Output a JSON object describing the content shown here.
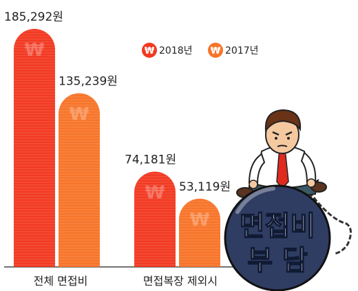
{
  "chart_data": {
    "type": "bar",
    "categories": [
      "전체 면접비",
      "면접복장 제외시"
    ],
    "series": [
      {
        "name": "2018년",
        "values": [
          185292,
          74181
        ],
        "labels": [
          "185,292원",
          "74,181원"
        ],
        "color": "#f23a22"
      },
      {
        "name": "2017년",
        "values": [
          135239,
          53119
        ],
        "labels": [
          "135,239원",
          "53,119원"
        ],
        "color": "#f7752a"
      }
    ],
    "ylim": [
      0,
      185292
    ],
    "legend": "top-right",
    "grid": false
  },
  "legend_icon_text": "₩",
  "illustration": {
    "ball_line1": "면접비",
    "ball_line2": "부 담",
    "ball_color": "#2f3d63"
  }
}
